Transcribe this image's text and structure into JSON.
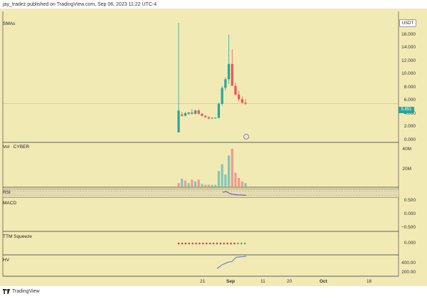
{
  "header": {
    "published_text": "jay_tradez published on TradingView.com, Sep 06, 2023 11:22 UTC-4"
  },
  "price_pane": {
    "label": "SMAs",
    "currency": "USDT",
    "current_price": "5.851",
    "y_ticks": [
      "18.000",
      "16.000",
      "14.000",
      "12.000",
      "10.000",
      "8.000",
      "6.000",
      "4.000",
      "2.000",
      "0.000"
    ]
  },
  "volume_pane": {
    "label": "Vol · CYBER",
    "y_ticks": [
      "40M",
      "20M"
    ]
  },
  "rsi_pane": {
    "label": "RSI"
  },
  "macd_pane": {
    "label": "MACD",
    "y_ticks": [
      "0.500",
      "0.000",
      "−0.500"
    ]
  },
  "ttm_pane": {
    "label": "TTM Squeeze",
    "y_ticks": [
      "0.000"
    ]
  },
  "hv_pane": {
    "label": "HV",
    "y_ticks": [
      "400.00",
      "200.00"
    ]
  },
  "x_axis": {
    "ticks": [
      "21",
      "Sep",
      "11",
      "20",
      "Oct",
      "16"
    ]
  },
  "footer": {
    "brand": "TradingView",
    "icon": "tradingview-logo-icon"
  },
  "colors": {
    "background": "#f2eab5",
    "up": "#26a69a",
    "down": "#ef5350",
    "rsi_line": "#7e57c2",
    "hv_line": "#5b6cc9"
  },
  "chart_data": {
    "type": "candlestick",
    "ylim": [
      0,
      18
    ],
    "candles": [
      {
        "o": 1.5,
        "h": 18.0,
        "l": 1.5,
        "c": 4.8
      },
      {
        "o": 4.2,
        "h": 4.6,
        "l": 3.9,
        "c": 4.0
      },
      {
        "o": 4.0,
        "h": 4.6,
        "l": 3.9,
        "c": 4.4
      },
      {
        "o": 4.3,
        "h": 4.6,
        "l": 4.1,
        "c": 4.5
      },
      {
        "o": 4.5,
        "h": 5.0,
        "l": 4.2,
        "c": 4.3
      },
      {
        "o": 4.3,
        "h": 4.9,
        "l": 4.2,
        "c": 4.8
      },
      {
        "o": 4.8,
        "h": 5.0,
        "l": 4.2,
        "c": 4.3
      },
      {
        "o": 4.3,
        "h": 4.4,
        "l": 3.9,
        "c": 4.0
      },
      {
        "o": 4.0,
        "h": 4.1,
        "l": 3.7,
        "c": 3.8
      },
      {
        "o": 3.8,
        "h": 3.9,
        "l": 3.5,
        "c": 3.6
      },
      {
        "o": 3.6,
        "h": 3.8,
        "l": 3.5,
        "c": 3.7
      },
      {
        "o": 3.7,
        "h": 3.8,
        "l": 3.6,
        "c": 3.7
      },
      {
        "o": 3.7,
        "h": 6.0,
        "l": 3.6,
        "c": 5.8
      },
      {
        "o": 5.8,
        "h": 8.5,
        "l": 5.5,
        "c": 8.2
      },
      {
        "o": 8.2,
        "h": 9.8,
        "l": 7.8,
        "c": 9.5
      },
      {
        "o": 9.5,
        "h": 16.2,
        "l": 8.8,
        "c": 11.8
      },
      {
        "o": 11.8,
        "h": 14.0,
        "l": 8.5,
        "c": 8.5
      },
      {
        "o": 8.5,
        "h": 9.0,
        "l": 7.0,
        "c": 7.2
      },
      {
        "o": 7.2,
        "h": 7.8,
        "l": 6.2,
        "c": 6.5
      },
      {
        "o": 6.5,
        "h": 6.9,
        "l": 5.8,
        "c": 6.0
      },
      {
        "o": 6.0,
        "h": 6.5,
        "l": 5.6,
        "c": 5.85
      }
    ],
    "volume": [
      {
        "v": 4,
        "up": false
      },
      {
        "v": 9,
        "up": true
      },
      {
        "v": 7,
        "up": false
      },
      {
        "v": 4,
        "up": true
      },
      {
        "v": 8,
        "up": false
      },
      {
        "v": 6,
        "up": true
      },
      {
        "v": 8,
        "up": false
      },
      {
        "v": 3,
        "up": true
      },
      {
        "v": 2,
        "up": false
      },
      {
        "v": 2,
        "up": false
      },
      {
        "v": 2,
        "up": true
      },
      {
        "v": 2,
        "up": true
      },
      {
        "v": 18,
        "up": true
      },
      {
        "v": 26,
        "up": true
      },
      {
        "v": 14,
        "up": true
      },
      {
        "v": 36,
        "up": true
      },
      {
        "v": 44,
        "up": false
      },
      {
        "v": 16,
        "up": false
      },
      {
        "v": 10,
        "up": false
      },
      {
        "v": 6,
        "up": false
      },
      {
        "v": 4,
        "up": true
      }
    ],
    "ttm_dots": 20,
    "hv": [
      160,
      240,
      280,
      300,
      310,
      400,
      420
    ]
  }
}
